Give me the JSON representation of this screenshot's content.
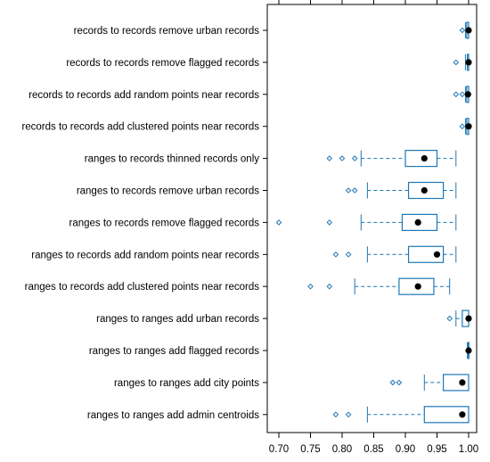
{
  "chart_data": {
    "type": "boxplot",
    "title": "",
    "xlabel": "",
    "ylabel": "",
    "orientation": "horizontal",
    "xlim": [
      0.69,
      1.01
    ],
    "x_ticks": [
      {
        "value": 0.7,
        "label": "0.70"
      },
      {
        "value": 0.75,
        "label": "0.75"
      },
      {
        "value": 0.8,
        "label": "0.80"
      },
      {
        "value": 0.85,
        "label": "0.85"
      },
      {
        "value": 0.9,
        "label": "0.90"
      },
      {
        "value": 0.95,
        "label": "0.95"
      },
      {
        "value": 1.0,
        "label": "1.00"
      }
    ],
    "colors": {
      "box": "#1f77b4",
      "median": "#000000",
      "axis": "#000000"
    },
    "categories": [
      {
        "label": "records to records remove urban records",
        "whisker_low": 0.995,
        "q1": 0.997,
        "median": 1.0,
        "q3": 1.0,
        "whisker_high": 1.0,
        "outliers": [
          0.99
        ]
      },
      {
        "label": "records to records remove flagged records",
        "whisker_low": 0.995,
        "q1": 0.998,
        "median": 1.0,
        "q3": 1.0,
        "whisker_high": 1.0,
        "outliers": [
          0.98
        ]
      },
      {
        "label": "records to records add random points near records",
        "whisker_low": 0.995,
        "q1": 0.997,
        "median": 0.999,
        "q3": 1.0,
        "whisker_high": 1.0,
        "outliers": [
          0.98,
          0.99
        ]
      },
      {
        "label": "records to records add clustered points near records",
        "whisker_low": 0.995,
        "q1": 0.997,
        "median": 1.0,
        "q3": 1.0,
        "whisker_high": 1.0,
        "outliers": [
          0.99
        ]
      },
      {
        "label": "ranges to records thinned records only",
        "whisker_low": 0.83,
        "q1": 0.9,
        "median": 0.93,
        "q3": 0.95,
        "whisker_high": 0.98,
        "outliers": [
          0.78,
          0.8,
          0.82
        ]
      },
      {
        "label": "ranges to records remove urban records",
        "whisker_low": 0.84,
        "q1": 0.905,
        "median": 0.93,
        "q3": 0.96,
        "whisker_high": 0.98,
        "outliers": [
          0.81,
          0.82
        ]
      },
      {
        "label": "ranges to records remove flagged records",
        "whisker_low": 0.83,
        "q1": 0.895,
        "median": 0.92,
        "q3": 0.95,
        "whisker_high": 0.98,
        "outliers": [
          0.7,
          0.78
        ]
      },
      {
        "label": "ranges to records add random points near records",
        "whisker_low": 0.84,
        "q1": 0.905,
        "median": 0.95,
        "q3": 0.96,
        "whisker_high": 0.98,
        "outliers": [
          0.79,
          0.81
        ]
      },
      {
        "label": "ranges to records add clustered points near records",
        "whisker_low": 0.82,
        "q1": 0.89,
        "median": 0.92,
        "q3": 0.945,
        "whisker_high": 0.97,
        "outliers": [
          0.75,
          0.78
        ]
      },
      {
        "label": "ranges to ranges add urban records",
        "whisker_low": 0.98,
        "q1": 0.99,
        "median": 1.0,
        "q3": 1.0,
        "whisker_high": 1.0,
        "outliers": [
          0.97
        ]
      },
      {
        "label": "ranges to ranges add flagged records",
        "whisker_low": 0.998,
        "q1": 0.999,
        "median": 1.0,
        "q3": 1.0,
        "whisker_high": 1.0,
        "outliers": []
      },
      {
        "label": "ranges to ranges add city points",
        "whisker_low": 0.93,
        "q1": 0.96,
        "median": 0.99,
        "q3": 1.0,
        "whisker_high": 1.0,
        "outliers": [
          0.88,
          0.89
        ]
      },
      {
        "label": "ranges to ranges add admin centroids",
        "whisker_low": 0.84,
        "q1": 0.93,
        "median": 0.99,
        "q3": 1.0,
        "whisker_high": 1.0,
        "outliers": [
          0.79,
          0.81
        ]
      }
    ]
  }
}
